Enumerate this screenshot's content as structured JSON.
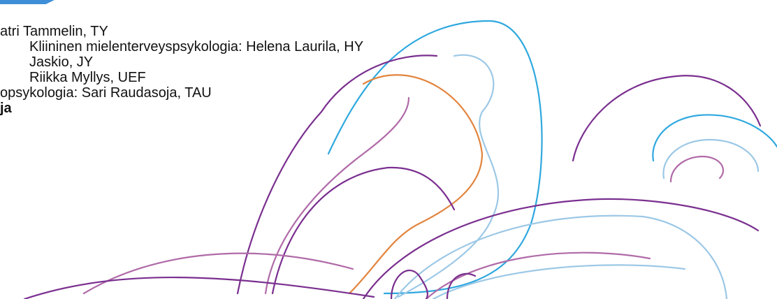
{
  "document": {
    "lines": [
      "atri Tammelin, TY",
      "Kliininen mielenterveyspsykologia: Helena Laurila, HY",
      "Jaskio, JY",
      "Riikka Myllys, UEF",
      "opsykologia: Sari Raudasoja, TAU",
      "ja"
    ]
  },
  "decor": {
    "icon": "abstract-swirl-pattern",
    "colors": {
      "purple": "#7a2f8f",
      "light_purple": "#b06aa8",
      "blue": "#2fa8df",
      "light_blue": "#9cc8e6",
      "orange": "#e2843d",
      "accent_blue": "#3f8fd8"
    }
  }
}
